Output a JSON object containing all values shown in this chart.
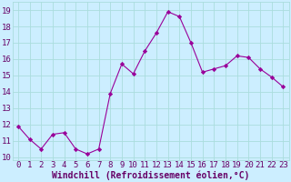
{
  "x": [
    0,
    1,
    2,
    3,
    4,
    5,
    6,
    7,
    8,
    9,
    10,
    11,
    12,
    13,
    14,
    15,
    16,
    17,
    18,
    19,
    20,
    21,
    22,
    23
  ],
  "y": [
    11.9,
    11.1,
    10.5,
    11.4,
    11.5,
    10.5,
    10.2,
    10.5,
    13.9,
    15.7,
    15.1,
    16.5,
    17.6,
    18.9,
    18.6,
    17.0,
    15.2,
    15.4,
    15.6,
    16.2,
    16.1,
    15.4,
    14.9,
    14.3
  ],
  "line_color": "#990099",
  "marker": "D",
  "markersize": 2.2,
  "linewidth": 0.8,
  "bg_color": "#cceeff",
  "grid_color": "#aadddd",
  "tick_label_color": "#660066",
  "xlabel": "Windchill (Refroidissement éolien,°C)",
  "xlabel_color": "#660066",
  "xlabel_fontsize": 7,
  "xlim": [
    -0.5,
    23.5
  ],
  "ylim": [
    9.8,
    19.5
  ],
  "yticks": [
    10,
    11,
    12,
    13,
    14,
    15,
    16,
    17,
    18,
    19
  ],
  "xticks": [
    0,
    1,
    2,
    3,
    4,
    5,
    6,
    7,
    8,
    9,
    10,
    11,
    12,
    13,
    14,
    15,
    16,
    17,
    18,
    19,
    20,
    21,
    22,
    23
  ],
  "tick_fontsize": 6.5
}
